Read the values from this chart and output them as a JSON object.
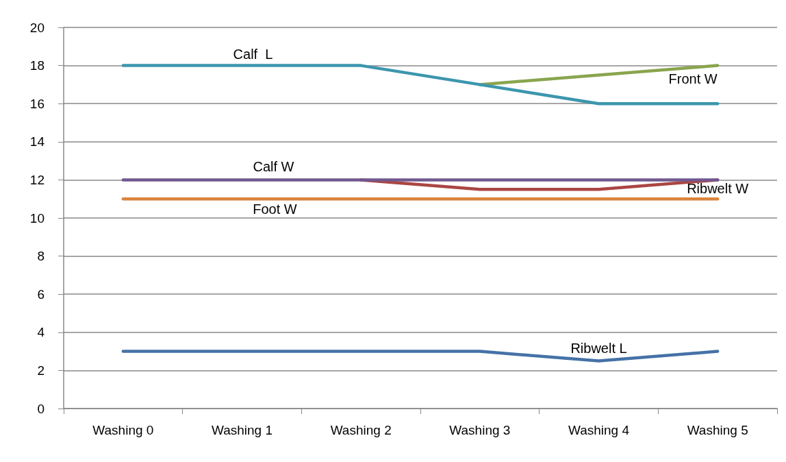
{
  "chart_data": {
    "type": "line",
    "categories": [
      "Washing 0",
      "Washing 1",
      "Washing 2",
      "Washing 3",
      "Washing 4",
      "Washing 5"
    ],
    "series": [
      {
        "name": "Ribwelt L",
        "color": "#4572a7",
        "values": [
          3,
          3,
          3,
          3,
          2.5,
          3
        ]
      },
      {
        "name": "Ribwelt W",
        "color": "#aa4643",
        "values": [
          null,
          null,
          12,
          11.5,
          11.5,
          12
        ]
      },
      {
        "name": "Front W",
        "color": "#89a54e",
        "values": [
          null,
          null,
          null,
          17,
          17.5,
          18
        ]
      },
      {
        "name": "Calf  L",
        "color": "#3d96ae",
        "values": [
          18,
          18,
          18,
          17,
          16,
          16
        ]
      },
      {
        "name": "Calf W",
        "color": "#71588f",
        "values": [
          12,
          12,
          12,
          12,
          12,
          12
        ]
      },
      {
        "name": "Foot W",
        "color": "#db843d",
        "values": [
          11,
          11,
          11,
          11,
          11,
          11
        ]
      }
    ],
    "ylim": [
      0,
      20
    ],
    "yticks": [
      0,
      2,
      4,
      6,
      8,
      10,
      12,
      14,
      16,
      18,
      20
    ],
    "grid": "y",
    "legend": false,
    "marker": "none",
    "line_style": "solid"
  }
}
